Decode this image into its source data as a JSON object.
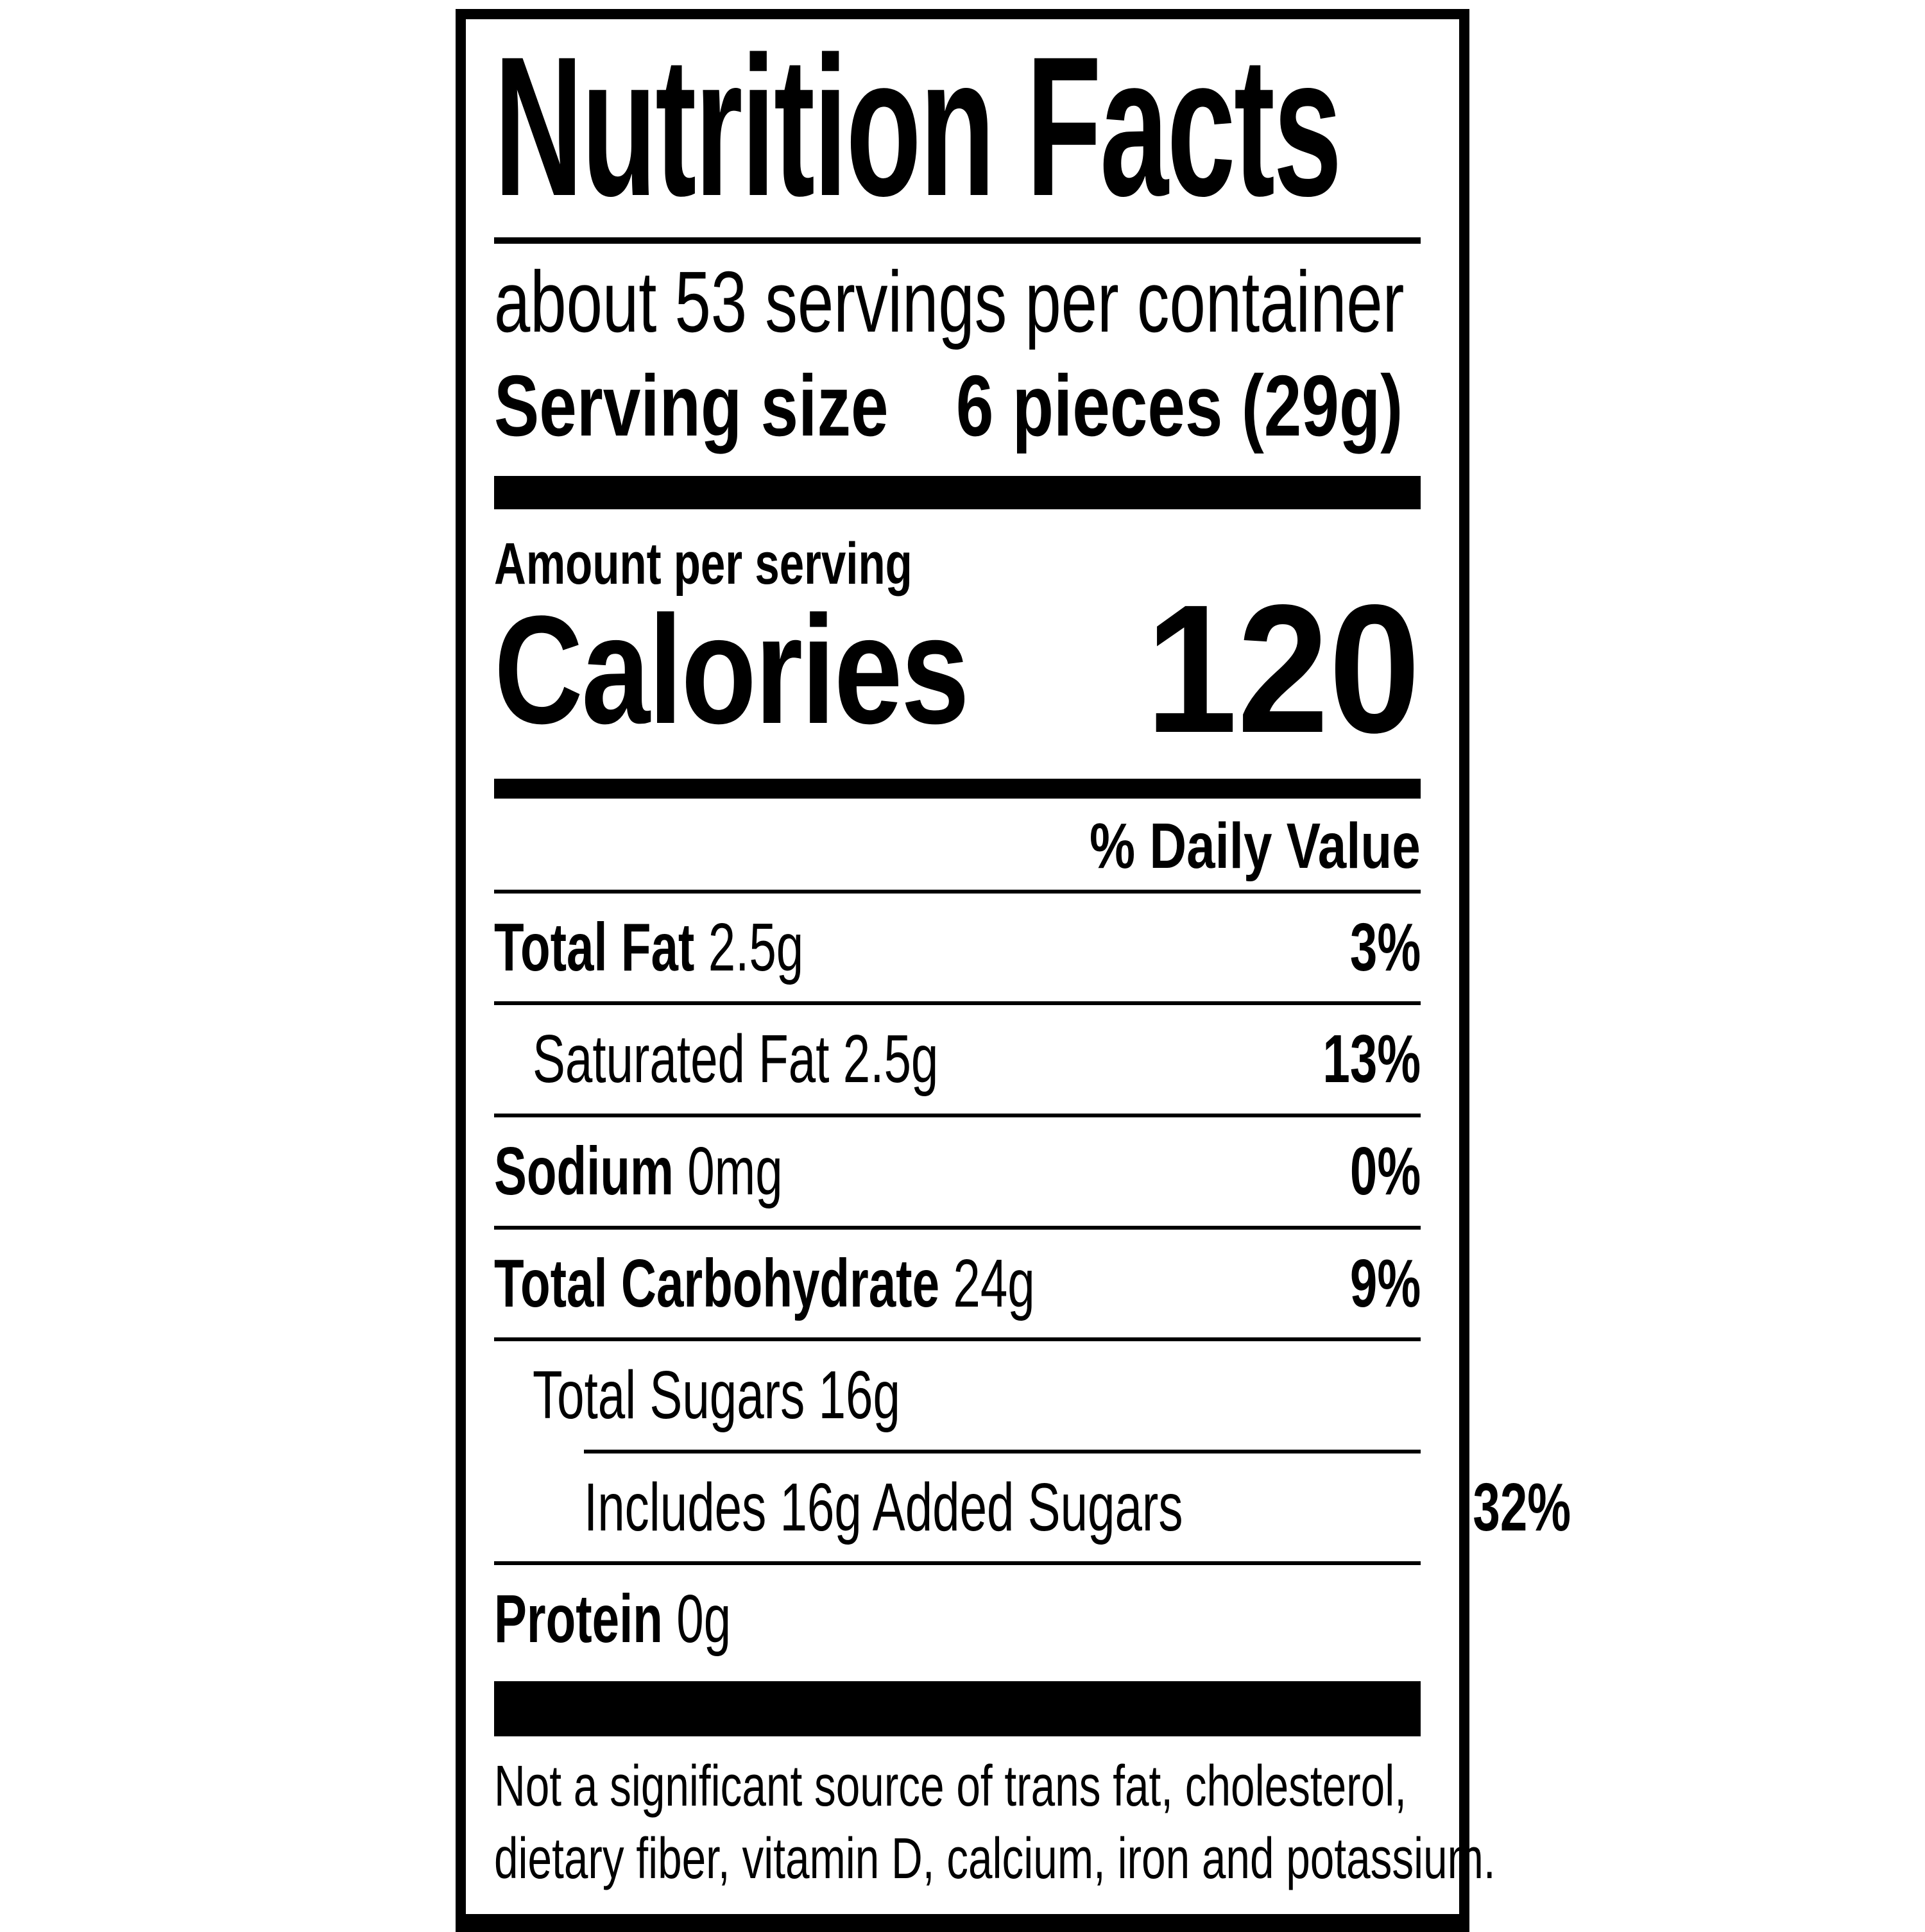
{
  "label": {
    "title": "Nutrition Facts",
    "servings_per_container": "about 53 servings per container",
    "serving_size": {
      "label": "Serving size",
      "value": "6 pieces (29g)"
    },
    "amount_per_serving": "Amount per serving",
    "calories": {
      "label": "Calories",
      "value": "120"
    },
    "daily_value_header": "% Daily Value",
    "nutrients": [
      {
        "name": "Total Fat",
        "amount": "2.5g",
        "dv": "3%"
      },
      {
        "name": "Saturated Fat",
        "amount": "2.5g",
        "dv": "13%"
      },
      {
        "name": "Sodium",
        "amount": "0mg",
        "dv": "0%"
      },
      {
        "name": "Total Carbohydrate",
        "amount": "24g",
        "dv": "9%"
      },
      {
        "name": "Total Sugars",
        "amount": "16g",
        "dv": ""
      },
      {
        "name": "Includes 16g Added Sugars",
        "amount": "",
        "dv": "32%"
      },
      {
        "name": "Protein",
        "amount": "0g",
        "dv": ""
      }
    ],
    "footnote": {
      "line1": "Not a significant source of trans fat, cholesterol,",
      "line2": "dietary fiber, vitamin D, calcium, iron and potassium."
    },
    "colors": {
      "ink": "#000000",
      "background": "#ffffff"
    }
  }
}
